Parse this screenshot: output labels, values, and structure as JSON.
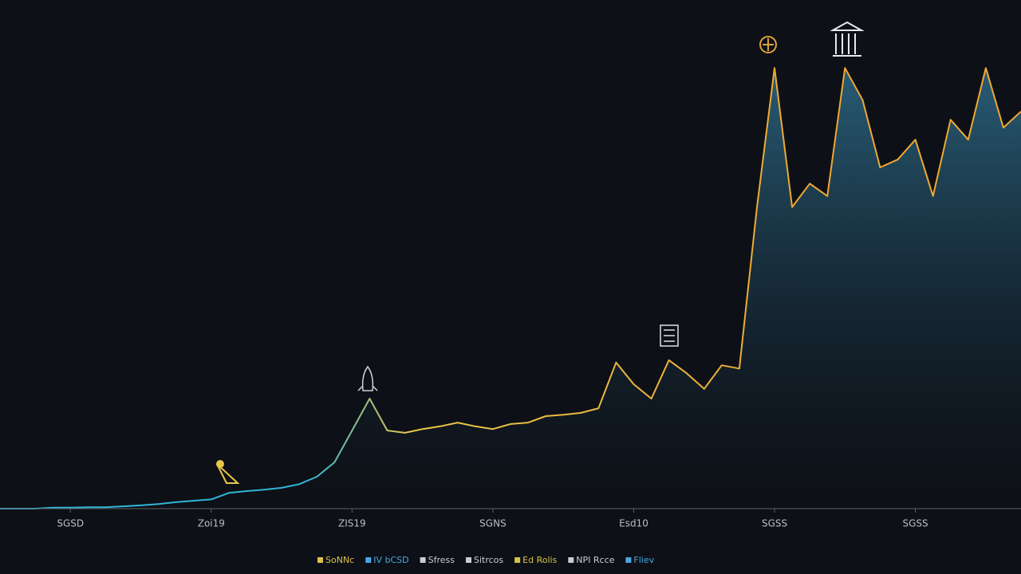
{
  "chart_data": {
    "type": "area-line",
    "categories": [
      null,
      null,
      null,
      null,
      "SGSD",
      null,
      null,
      null,
      null,
      null,
      null,
      null,
      "Zoi19",
      null,
      null,
      null,
      null,
      null,
      null,
      null,
      "ZIS19",
      null,
      null,
      null,
      null,
      null,
      null,
      null,
      "SGNS",
      null,
      null,
      null,
      null,
      null,
      null,
      null,
      "Esd10",
      null,
      null,
      null,
      null,
      null,
      null,
      null,
      "SGSS",
      null,
      null,
      null,
      null,
      null,
      null,
      null,
      "SGSS",
      null,
      null,
      null,
      null,
      null,
      null
    ],
    "values": [
      0,
      0,
      0,
      0.2,
      0.2,
      0.3,
      0.3,
      0.5,
      0.7,
      1,
      1.4,
      1.7,
      2,
      3.4,
      3.8,
      4.1,
      4.5,
      5.3,
      6.9,
      10,
      16.9,
      23.8,
      16.9,
      16.4,
      17.2,
      17.8,
      18.6,
      17.8,
      17.2,
      18.3,
      18.6,
      20,
      20.3,
      20.7,
      21.7,
      31.6,
      26.9,
      23.8,
      32.1,
      29.3,
      25.9,
      31,
      30.3,
      65.2,
      95.3,
      65.2,
      70.3,
      67.6,
      95.3,
      88.4,
      73.8,
      75.5,
      79.8,
      67.6,
      84.1,
      79.8,
      95.3,
      82.4,
      85.9
    ],
    "ylim": [
      0,
      100
    ],
    "line_colors": [
      "#2fb6d8",
      "#e8c64a",
      "#f0a830"
    ],
    "area_color": "#2d6a88",
    "legend": [
      {
        "label": "SoNNc",
        "color": "#d8c24a"
      },
      {
        "label": "IV bCSD",
        "color": "#4aa8e0"
      },
      {
        "label": "Sfress",
        "color": "#c9ccd2"
      },
      {
        "label": "Sitrcos",
        "color": "#c9ccd2"
      },
      {
        "label": "Ed Rolis",
        "color": "#d8c24a"
      },
      {
        "label": "NPI Rcce",
        "color": "#c9ccd2"
      },
      {
        "label": "Fliev",
        "color": "#4aa8e0"
      }
    ]
  }
}
